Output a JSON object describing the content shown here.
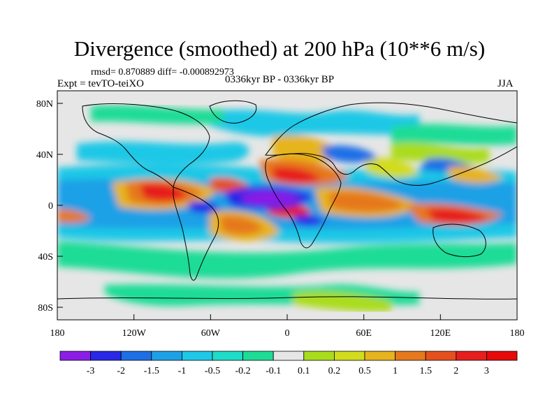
{
  "title": "Divergence (smoothed) at 200 hPa (10**6 m/s)",
  "stats": "rmsd= 0.870889 diff= -0.000892973",
  "experiment": "Expt = tevTO-teiXO",
  "period": "0336kyr BP - 0336kyr BP",
  "season": "JJA",
  "axes": {
    "x_ticks": [
      "180",
      "120W",
      "60W",
      "0",
      "60E",
      "120E",
      "180"
    ],
    "y_ticks": [
      "80N",
      "40N",
      "0",
      "40S",
      "80S"
    ]
  },
  "colorbar": {
    "labels": [
      "-3",
      "-2",
      "-1.5",
      "-1",
      "-0.5",
      "-0.2",
      "-0.1",
      "0.1",
      "0.2",
      "0.5",
      "1",
      "1.5",
      "2",
      "3"
    ],
    "colors": [
      "#8a1ee6",
      "#2828e6",
      "#1e6ee6",
      "#1ea0e6",
      "#1ec8e6",
      "#1edcc8",
      "#1edc96",
      "#e6e6e6",
      "#aadc1e",
      "#d2dc1e",
      "#e6b41e",
      "#e6781e",
      "#e6501e",
      "#e61e1e",
      "#e60a0a"
    ]
  }
}
